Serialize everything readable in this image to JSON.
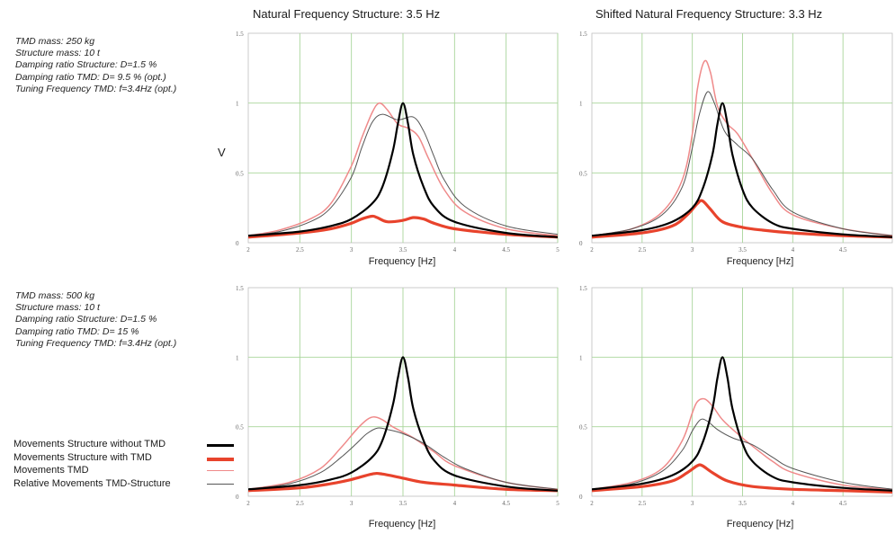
{
  "titles": {
    "col1": "Natural Frequency Structure: 3.5 Hz",
    "col2": "Shifted Natural Frequency Structure: 3.3 Hz"
  },
  "ylabel": "V",
  "params": [
    [
      "TMD mass: 250 kg",
      "Structure mass: 10 t",
      "Damping ratio Structure: D=1.5 %",
      "Damping ratio TMD: D= 9.5 % (opt.)",
      "Tuning Frequency TMD: f=3.4Hz (opt.)"
    ],
    [
      "TMD mass: 500 kg",
      "Structure mass: 10 t",
      "Damping ratio Structure: D=1.5 %",
      "Damping ratio TMD: D= 15 %",
      "Tuning Frequency TMD: f=3.4Hz (opt.)"
    ]
  ],
  "legend": [
    {
      "label": "Movements Structure without TMD",
      "color": "#000000",
      "width": 3
    },
    {
      "label": "Movements Structure with TMD",
      "color": "#e8432c",
      "width": 3.5
    },
    {
      "label": "Movements TMD",
      "color": "#ef8a8a",
      "width": 1.5
    },
    {
      "label": "Relative Movements TMD-Structure",
      "color": "#555555",
      "width": 1
    }
  ],
  "chart_data": [
    {
      "type": "line",
      "xlabel": "Frequency [Hz]",
      "ylabel": "V",
      "xlim": [
        2,
        5
      ],
      "ylim": [
        0,
        1.5
      ],
      "xticks": [
        "2",
        "2.5",
        "3",
        "3.5",
        "4",
        "4.5",
        "5"
      ],
      "yticks": [
        "0",
        "0.5",
        "1",
        "1.5"
      ],
      "series": [
        {
          "name": "Movements Structure without TMD",
          "color": "#000000",
          "width": 2.2,
          "x": [
            2.0,
            2.5,
            2.8,
            3.0,
            3.2,
            3.3,
            3.4,
            3.45,
            3.5,
            3.55,
            3.6,
            3.7,
            3.8,
            4.0,
            4.5,
            5.0
          ],
          "y": [
            0.05,
            0.08,
            0.12,
            0.17,
            0.28,
            0.4,
            0.65,
            0.85,
            1.0,
            0.85,
            0.63,
            0.4,
            0.26,
            0.15,
            0.07,
            0.04
          ]
        },
        {
          "name": "Movements Structure with TMD",
          "color": "#e8432c",
          "width": 3.2,
          "x": [
            2.0,
            2.5,
            2.8,
            3.0,
            3.1,
            3.2,
            3.25,
            3.35,
            3.5,
            3.6,
            3.7,
            3.8,
            4.0,
            4.5,
            5.0
          ],
          "y": [
            0.04,
            0.07,
            0.1,
            0.14,
            0.17,
            0.19,
            0.18,
            0.15,
            0.16,
            0.18,
            0.17,
            0.14,
            0.1,
            0.06,
            0.04
          ]
        },
        {
          "name": "Movements TMD",
          "color": "#ef8a8a",
          "width": 1.5,
          "x": [
            2.0,
            2.3,
            2.6,
            2.8,
            3.0,
            3.1,
            3.2,
            3.27,
            3.35,
            3.45,
            3.55,
            3.65,
            3.75,
            3.9,
            4.1,
            4.5,
            5.0
          ],
          "y": [
            0.05,
            0.09,
            0.17,
            0.28,
            0.55,
            0.75,
            0.93,
            1.0,
            0.95,
            0.85,
            0.82,
            0.76,
            0.6,
            0.38,
            0.22,
            0.1,
            0.05
          ]
        },
        {
          "name": "Relative Movements TMD-Structure",
          "color": "#555555",
          "width": 1,
          "x": [
            2.0,
            2.3,
            2.6,
            2.8,
            3.0,
            3.1,
            3.2,
            3.3,
            3.45,
            3.6,
            3.7,
            3.8,
            3.9,
            4.1,
            4.5,
            5.0
          ],
          "y": [
            0.05,
            0.08,
            0.15,
            0.25,
            0.47,
            0.68,
            0.86,
            0.92,
            0.88,
            0.9,
            0.8,
            0.62,
            0.45,
            0.26,
            0.12,
            0.06
          ]
        }
      ]
    },
    {
      "type": "line",
      "xlabel": "Frequency [Hz]",
      "ylabel": "",
      "xlim": [
        2,
        5
      ],
      "ylim": [
        0,
        1.5
      ],
      "xticks": [
        "2",
        "2.5",
        "3",
        "3.5",
        "4",
        "4.5"
      ],
      "yticks": [
        "0",
        "0.5",
        "1",
        "1.5"
      ],
      "series": [
        {
          "name": "Movements Structure without TMD",
          "color": "#000000",
          "width": 2.2,
          "x": [
            2.0,
            2.5,
            2.8,
            3.0,
            3.1,
            3.2,
            3.25,
            3.3,
            3.35,
            3.4,
            3.5,
            3.6,
            3.8,
            4.0,
            4.5,
            5.0
          ],
          "y": [
            0.05,
            0.09,
            0.15,
            0.25,
            0.38,
            0.63,
            0.85,
            1.0,
            0.85,
            0.63,
            0.38,
            0.25,
            0.14,
            0.1,
            0.06,
            0.04
          ]
        },
        {
          "name": "Movements Structure with TMD",
          "color": "#e8432c",
          "width": 3.2,
          "x": [
            2.0,
            2.5,
            2.8,
            2.95,
            3.05,
            3.1,
            3.18,
            3.3,
            3.5,
            3.7,
            4.0,
            4.5,
            5.0
          ],
          "y": [
            0.04,
            0.07,
            0.12,
            0.2,
            0.28,
            0.3,
            0.24,
            0.15,
            0.11,
            0.09,
            0.07,
            0.05,
            0.04
          ]
        },
        {
          "name": "Movements TMD",
          "color": "#ef8a8a",
          "width": 1.5,
          "x": [
            2.0,
            2.4,
            2.7,
            2.9,
            3.0,
            3.05,
            3.12,
            3.18,
            3.25,
            3.35,
            3.45,
            3.6,
            3.8,
            4.0,
            4.5,
            5.0
          ],
          "y": [
            0.05,
            0.1,
            0.22,
            0.45,
            0.78,
            1.1,
            1.3,
            1.22,
            0.98,
            0.85,
            0.78,
            0.6,
            0.35,
            0.2,
            0.1,
            0.05
          ]
        },
        {
          "name": "Relative Movements TMD-Structure",
          "color": "#555555",
          "width": 1,
          "x": [
            2.0,
            2.4,
            2.7,
            2.9,
            3.0,
            3.07,
            3.15,
            3.22,
            3.32,
            3.45,
            3.6,
            3.8,
            4.0,
            4.5,
            5.0
          ],
          "y": [
            0.05,
            0.1,
            0.2,
            0.4,
            0.68,
            0.92,
            1.08,
            1.0,
            0.8,
            0.7,
            0.6,
            0.38,
            0.22,
            0.1,
            0.05
          ]
        }
      ]
    },
    {
      "type": "line",
      "xlabel": "Frequency [Hz]",
      "ylabel": "",
      "xlim": [
        2,
        5
      ],
      "ylim": [
        0,
        1.5
      ],
      "xticks": [
        "2",
        "2.5",
        "3",
        "3.5",
        "4",
        "4.5",
        "5"
      ],
      "yticks": [
        "0",
        "0.5",
        "1",
        "1.5"
      ],
      "series": [
        {
          "name": "Movements Structure without TMD",
          "color": "#000000",
          "width": 2.2,
          "x": [
            2.0,
            2.5,
            2.8,
            3.0,
            3.2,
            3.3,
            3.4,
            3.45,
            3.5,
            3.55,
            3.6,
            3.7,
            3.8,
            4.0,
            4.5,
            5.0
          ],
          "y": [
            0.05,
            0.08,
            0.12,
            0.17,
            0.28,
            0.4,
            0.65,
            0.85,
            1.0,
            0.85,
            0.63,
            0.4,
            0.26,
            0.15,
            0.07,
            0.04
          ]
        },
        {
          "name": "Movements Structure with TMD",
          "color": "#e8432c",
          "width": 3.2,
          "x": [
            2.0,
            2.5,
            2.8,
            3.0,
            3.2,
            3.3,
            3.5,
            3.7,
            4.0,
            4.5,
            5.0
          ],
          "y": [
            0.04,
            0.06,
            0.09,
            0.12,
            0.16,
            0.16,
            0.13,
            0.1,
            0.08,
            0.05,
            0.04
          ]
        },
        {
          "name": "Movements TMD",
          "color": "#ef8a8a",
          "width": 1.5,
          "x": [
            2.0,
            2.4,
            2.7,
            2.9,
            3.05,
            3.15,
            3.22,
            3.3,
            3.4,
            3.5,
            3.6,
            3.8,
            4.0,
            4.5,
            5.0
          ],
          "y": [
            0.05,
            0.1,
            0.2,
            0.35,
            0.48,
            0.55,
            0.57,
            0.55,
            0.5,
            0.46,
            0.42,
            0.32,
            0.22,
            0.1,
            0.05
          ]
        },
        {
          "name": "Relative Movements TMD-Structure",
          "color": "#555555",
          "width": 1,
          "x": [
            2.0,
            2.4,
            2.7,
            2.9,
            3.05,
            3.15,
            3.25,
            3.35,
            3.5,
            3.7,
            3.9,
            4.1,
            4.5,
            5.0
          ],
          "y": [
            0.05,
            0.09,
            0.17,
            0.28,
            0.38,
            0.45,
            0.49,
            0.48,
            0.45,
            0.38,
            0.28,
            0.2,
            0.1,
            0.05
          ]
        }
      ]
    },
    {
      "type": "line",
      "xlabel": "Frequency [Hz]",
      "ylabel": "",
      "xlim": [
        2,
        5
      ],
      "ylim": [
        0,
        1.5
      ],
      "xticks": [
        "2",
        "2.5",
        "3",
        "3.5",
        "4",
        "4.5"
      ],
      "yticks": [
        "0",
        "0.5",
        "1",
        "1.5"
      ],
      "series": [
        {
          "name": "Movements Structure without TMD",
          "color": "#000000",
          "width": 2.2,
          "x": [
            2.0,
            2.5,
            2.8,
            3.0,
            3.1,
            3.2,
            3.25,
            3.3,
            3.35,
            3.4,
            3.5,
            3.6,
            3.8,
            4.0,
            4.5,
            5.0
          ],
          "y": [
            0.05,
            0.09,
            0.15,
            0.25,
            0.38,
            0.63,
            0.85,
            1.0,
            0.85,
            0.63,
            0.38,
            0.25,
            0.14,
            0.1,
            0.06,
            0.04
          ]
        },
        {
          "name": "Movements Structure with TMD",
          "color": "#e8432c",
          "width": 3.2,
          "x": [
            2.0,
            2.5,
            2.8,
            2.95,
            3.05,
            3.1,
            3.2,
            3.35,
            3.6,
            4.0,
            4.5,
            5.0
          ],
          "y": [
            0.04,
            0.07,
            0.11,
            0.17,
            0.22,
            0.22,
            0.17,
            0.11,
            0.07,
            0.05,
            0.04,
            0.03
          ]
        },
        {
          "name": "Movements TMD",
          "color": "#ef8a8a",
          "width": 1.5,
          "x": [
            2.0,
            2.4,
            2.7,
            2.9,
            3.0,
            3.05,
            3.12,
            3.2,
            3.3,
            3.45,
            3.6,
            3.8,
            4.0,
            4.5,
            5.0
          ],
          "y": [
            0.05,
            0.1,
            0.2,
            0.4,
            0.6,
            0.68,
            0.7,
            0.65,
            0.55,
            0.45,
            0.36,
            0.25,
            0.17,
            0.08,
            0.05
          ]
        },
        {
          "name": "Relative Movements TMD-Structure",
          "color": "#555555",
          "width": 1,
          "x": [
            2.0,
            2.4,
            2.7,
            2.9,
            3.0,
            3.08,
            3.15,
            3.25,
            3.4,
            3.6,
            3.8,
            4.0,
            4.5,
            5.0
          ],
          "y": [
            0.05,
            0.09,
            0.18,
            0.33,
            0.47,
            0.55,
            0.54,
            0.48,
            0.42,
            0.37,
            0.28,
            0.2,
            0.1,
            0.05
          ]
        }
      ]
    }
  ]
}
